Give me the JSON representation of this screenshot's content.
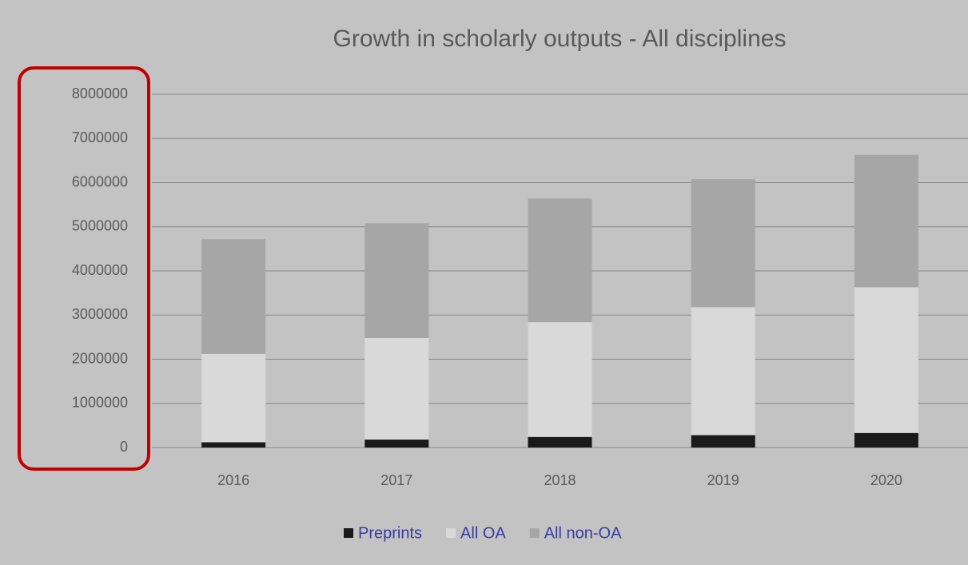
{
  "chart_data": {
    "type": "stacked_bar",
    "title": "Growth in scholarly outputs - All disciplines",
    "categories": [
      "2016",
      "2017",
      "2018",
      "2019",
      "2020"
    ],
    "series": [
      {
        "name": "Preprints",
        "color": "#1a1a1a",
        "values": [
          120000,
          180000,
          240000,
          280000,
          330000
        ]
      },
      {
        "name": "All OA",
        "color": "#d9d9d9",
        "values": [
          2000000,
          2300000,
          2600000,
          2900000,
          3300000
        ]
      },
      {
        "name": "All non-OA",
        "color": "#a6a6a6",
        "values": [
          2600000,
          2600000,
          2800000,
          2900000,
          3000000
        ]
      }
    ],
    "ylim": [
      0,
      8000000
    ],
    "yticks": [
      0,
      1000000,
      2000000,
      3000000,
      4000000,
      5000000,
      6000000,
      7000000,
      8000000
    ],
    "grid": true
  }
}
